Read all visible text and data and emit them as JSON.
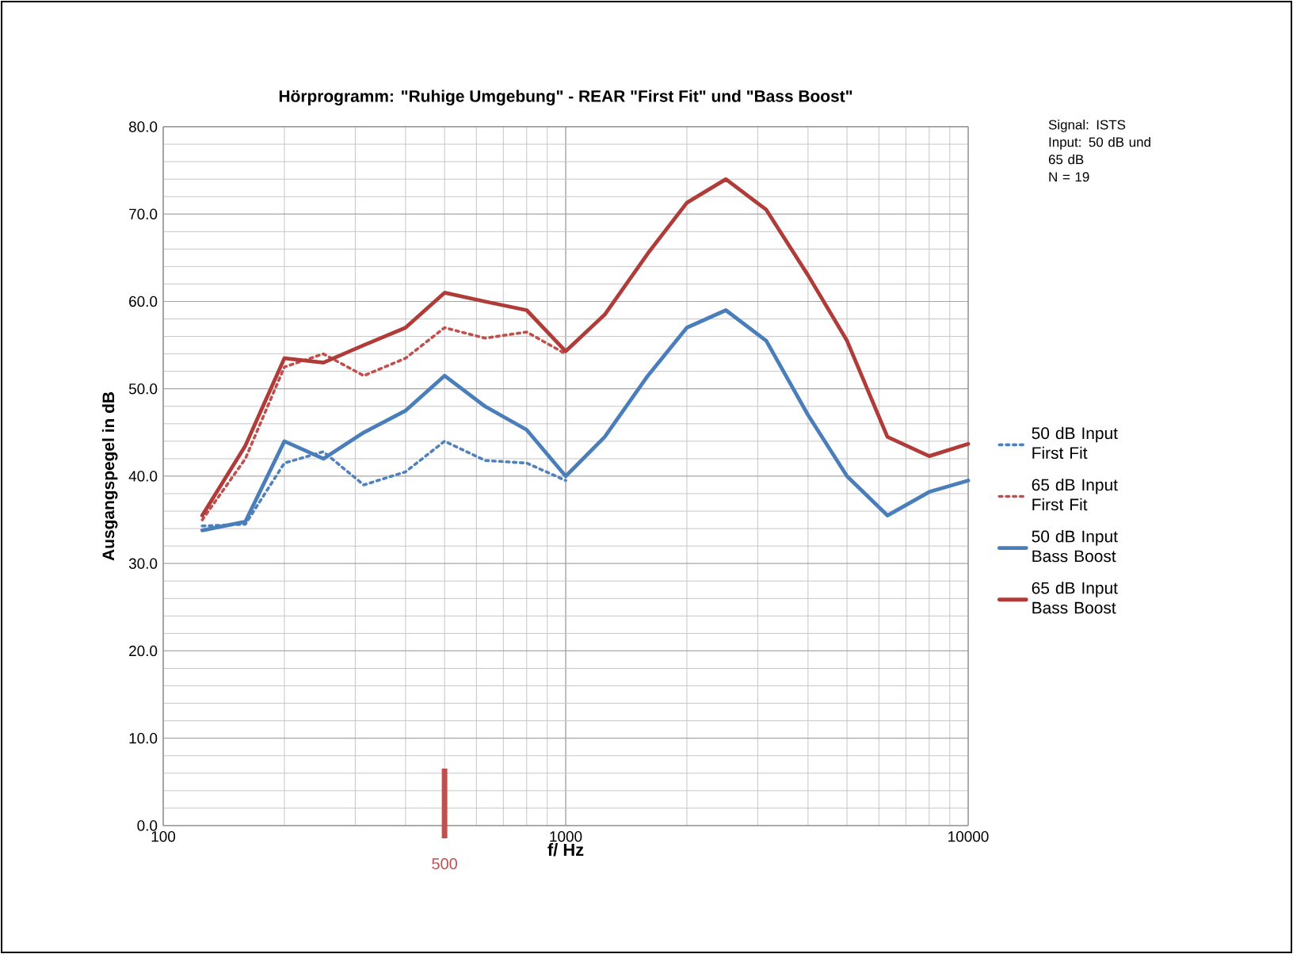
{
  "chart_data": {
    "type": "line",
    "title": "Hörprogramm: \"Ruhige Umgebung\" - REAR \"First Fit\" und \"Bass Boost\"",
    "xlabel": "f/ Hz",
    "ylabel": "Ausgangspegel in dB",
    "x": [
      125,
      160,
      200,
      250,
      315,
      400,
      500,
      630,
      800,
      1000,
      1250,
      1600,
      2000,
      2500,
      3150,
      4000,
      5000,
      6300,
      8000,
      10000
    ],
    "series": [
      {
        "name": "50 dB Input First Fit",
        "color": "#4f81bd",
        "line_style": "dotted",
        "x": [
          125,
          160,
          200,
          250,
          315,
          400,
          500,
          630,
          800,
          1000
        ],
        "values": [
          34.3,
          34.5,
          41.5,
          42.8,
          39.0,
          40.5,
          44.0,
          41.8,
          41.5,
          39.5
        ]
      },
      {
        "name": "65 dB Input First Fit",
        "color": "#c0504d",
        "line_style": "dotted",
        "x": [
          125,
          160,
          200,
          250,
          315,
          400,
          500,
          630,
          800,
          1000
        ],
        "values": [
          35.0,
          42.0,
          52.5,
          54.0,
          51.5,
          53.5,
          57.0,
          55.8,
          56.5,
          54.0
        ]
      },
      {
        "name": "50 dB Input Bass Boost",
        "color": "#4a7ebb",
        "line_style": "solid",
        "values": [
          33.8,
          34.8,
          44.0,
          42.0,
          45.0,
          47.5,
          51.5,
          48.0,
          45.3,
          40.0,
          44.5,
          51.5,
          57.0,
          59.0,
          55.5,
          47.0,
          40.0,
          35.5,
          38.2,
          39.5
        ]
      },
      {
        "name": "65 dB Input Bass Boost",
        "color": "#b03c3a",
        "line_style": "solid",
        "values": [
          35.5,
          43.5,
          53.5,
          53.0,
          55.0,
          57.0,
          61.0,
          60.0,
          59.0,
          54.3,
          58.5,
          65.5,
          71.3,
          74.0,
          70.5,
          63.0,
          55.5,
          44.5,
          42.3,
          43.7
        ]
      }
    ],
    "log": "x",
    "xlim": [
      100,
      10000
    ],
    "xticks": [
      100,
      1000,
      10000
    ],
    "ylim": [
      0,
      80
    ],
    "yticks": [
      {
        "value": 0,
        "label": "0.0"
      },
      {
        "value": 10,
        "label": "10.0"
      },
      {
        "value": 20,
        "label": "20.0"
      },
      {
        "value": 30,
        "label": "30.0"
      },
      {
        "value": 40,
        "label": "40.0"
      },
      {
        "value": 50,
        "label": "50.0"
      },
      {
        "value": 60,
        "label": "60.0"
      },
      {
        "value": 70,
        "label": "70.0"
      },
      {
        "value": 80,
        "label": "80.0"
      }
    ],
    "grid": true,
    "legend": "right",
    "marker": "none",
    "ref_lines": [
      {
        "axis": "x",
        "value": 500,
        "label": "500",
        "color": "#c0504d"
      }
    ],
    "annotations": [
      "Signal: ISTS",
      "Input: 50 dB und 65 dB",
      "N = 19"
    ]
  }
}
